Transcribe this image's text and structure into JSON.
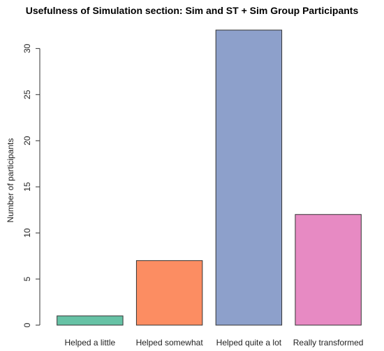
{
  "chart_data": {
    "type": "bar",
    "title": "Usefulness of Simulation section: Sim and ST + Sim Group Participants",
    "xlabel": "",
    "ylabel": "Number of participants",
    "categories": [
      "Helped a little",
      "Helped somewhat",
      "Helped quite a lot",
      "Really transformed"
    ],
    "values": [
      1,
      7,
      32,
      12
    ],
    "colors": [
      "#66c2a5",
      "#fc8d62",
      "#8da0cb",
      "#e78ac3"
    ],
    "bar_border_color": "#333333",
    "ylim": [
      0,
      32
    ],
    "yticks": [
      0,
      5,
      10,
      15,
      20,
      25,
      30
    ],
    "grid": false,
    "legend": "none"
  }
}
